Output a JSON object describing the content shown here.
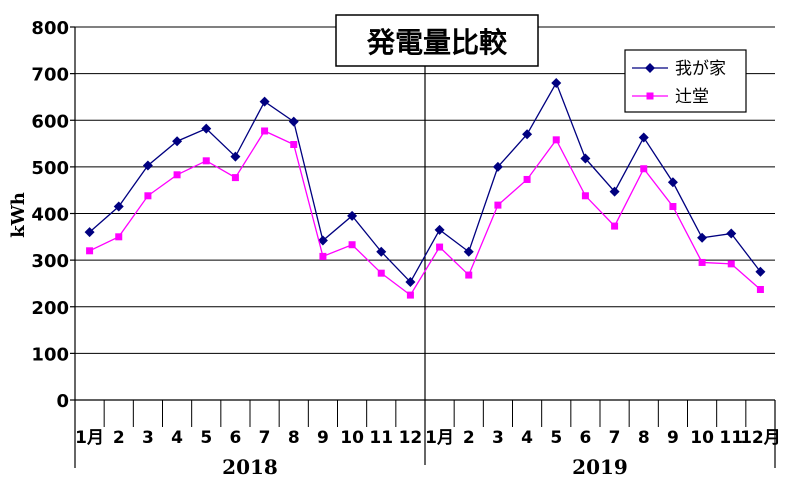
{
  "chart_data": {
    "type": "line",
    "title": "発電量比較",
    "ylabel": "kWh",
    "ylim": [
      0,
      800
    ],
    "yticks": [
      "0",
      "100",
      "200",
      "300",
      "400",
      "500",
      "600",
      "700",
      "800"
    ],
    "grid": true,
    "legend_position": "top-right",
    "categories": [
      "1月",
      "2",
      "3",
      "4",
      "5",
      "6",
      "7",
      "8",
      "9",
      "10",
      "11",
      "12",
      "1月",
      "2",
      "3",
      "4",
      "5",
      "6",
      "7",
      "8",
      "9",
      "10",
      "11",
      "12月"
    ],
    "groups": [
      {
        "label": "2018",
        "count": 12
      },
      {
        "label": "2019",
        "count": 12
      }
    ],
    "series": [
      {
        "name": "我が家",
        "color": "#000080",
        "marker": "diamond",
        "values": [
          360,
          415,
          503,
          555,
          582,
          522,
          640,
          597,
          342,
          395,
          318,
          253,
          365,
          318,
          500,
          570,
          680,
          518,
          447,
          563,
          467,
          348,
          357,
          275
        ]
      },
      {
        "name": "辻堂",
        "color": "#ff00ff",
        "marker": "square",
        "values": [
          320,
          350,
          438,
          483,
          513,
          477,
          577,
          548,
          308,
          333,
          272,
          225,
          328,
          268,
          418,
          473,
          558,
          438,
          373,
          496,
          415,
          295,
          292,
          237
        ]
      }
    ]
  }
}
